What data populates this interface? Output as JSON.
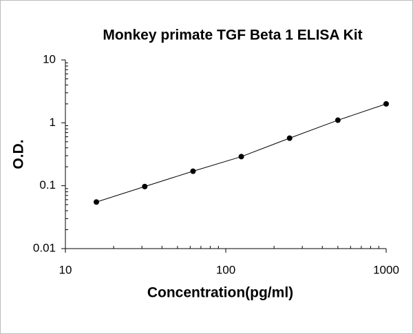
{
  "chart_data": {
    "type": "scatter",
    "title": "Monkey primate TGF Beta 1 ELISA Kit",
    "xlabel": "Concentration(pg/ml)",
    "ylabel": "O.D.",
    "x": [
      15.6,
      31.25,
      62.5,
      125,
      250,
      500,
      1000
    ],
    "series": [
      {
        "color": "#000000",
        "values": [
          0.055,
          0.097,
          0.17,
          0.29,
          0.57,
          1.1,
          2.0
        ]
      }
    ],
    "xlim": [
      10,
      1000
    ],
    "ylim": [
      0.01,
      10
    ],
    "xticks": [
      10,
      100,
      1000
    ],
    "yticks": [
      0.01,
      0.1,
      1,
      10
    ],
    "xscale": "log",
    "yscale": "log",
    "minor_ticks": true,
    "connect_points": true
  }
}
